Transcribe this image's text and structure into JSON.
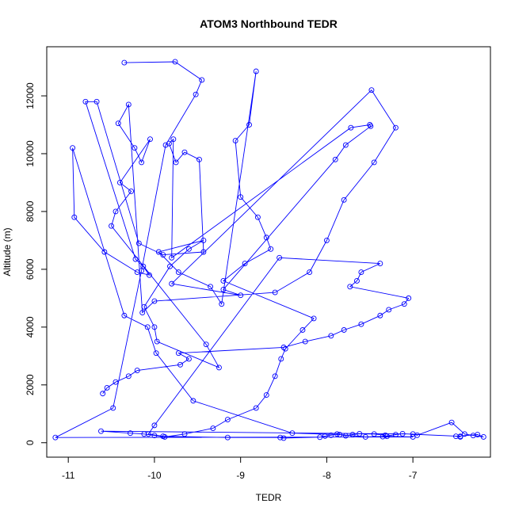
{
  "chart_data": {
    "type": "line",
    "title": "ATOM3 Northbound TEDR",
    "xlabel": "TEDR",
    "ylabel": "Altitude (m)",
    "xlim": [
      -11.25,
      -6.1
    ],
    "ylim": [
      -500,
      13700
    ],
    "xticks": [
      -11,
      -10,
      -9,
      -8,
      -7
    ],
    "yticks": [
      0,
      2000,
      4000,
      6000,
      8000,
      10000,
      12000
    ],
    "grid": false,
    "legend": "none",
    "colors": {
      "series": "#0000ff",
      "axis": "#000000"
    },
    "series": [
      {
        "marker": "open-circle",
        "x": [
          -10.35,
          -9.76,
          -9.45,
          -9.52,
          -9.87,
          -10.15,
          -10.48,
          -11.15,
          -7.0,
          -7.3,
          -7.55,
          -7.85,
          -8.4,
          -9.55,
          -9.98,
          -10.08,
          -10.35,
          -10.95,
          -10.93,
          -10.58,
          -10.2,
          -10.06,
          -10.13,
          -10.22,
          -10.8,
          -10.67,
          -10.18,
          -9.9,
          -9.43,
          -9.48,
          -9.65,
          -9.75,
          -9.83,
          -9.78,
          -9.8,
          -7.72,
          -7.5,
          -7.49,
          -7.78,
          -7.9,
          -9.2,
          -9.0,
          -9.8,
          -7.48,
          -7.2,
          -7.45,
          -7.8,
          -8.0,
          -8.2,
          -8.6,
          -10.0,
          -10.14,
          -10.3,
          -10.42,
          -10.23,
          -10.15,
          -10.05,
          -10.4,
          -10.27,
          -10.45,
          -10.5,
          -9.4,
          -9.25,
          -9.97,
          -10.0,
          -10.12,
          -9.82,
          -9.6,
          -9.43,
          -9.95,
          -9.72,
          -9.35,
          -9.22,
          -8.82,
          -8.9,
          -9.06,
          -9.0,
          -8.8,
          -8.7,
          -8.65,
          -8.95,
          -9.2,
          -8.15,
          -8.28,
          -8.48,
          -8.53,
          -8.6,
          -8.7,
          -8.82,
          -9.15,
          -9.32,
          -9.65,
          -9.88,
          -10.0,
          -10.12,
          -10.28,
          -10.62,
          -7.0,
          -6.95,
          -6.55,
          -6.4,
          -6.3,
          -6.18,
          -6.25,
          -6.5,
          -6.45,
          -6.45,
          -7.12,
          -7.2,
          -7.35,
          -7.32,
          -7.45,
          -7.62,
          -7.7,
          -7.78,
          -7.88,
          -7.95,
          -8.02,
          -8.08,
          -8.5,
          -8.54,
          -9.15,
          -9.9,
          -10.07,
          -10.0,
          -8.55,
          -7.38,
          -7.6,
          -7.65,
          -7.73,
          -7.05,
          -7.1,
          -7.28,
          -7.38,
          -7.6,
          -7.8,
          -7.95,
          -8.25,
          -8.5,
          -9.72,
          -9.6,
          -9.7,
          -10.2,
          -10.3,
          -10.45,
          -10.55,
          -10.6
        ],
        "y": [
          13150,
          13180,
          12550,
          12050,
          10300,
          5950,
          1200,
          180,
          200,
          220,
          200,
          280,
          330,
          1450,
          3100,
          4000,
          4400,
          10200,
          7800,
          6600,
          5900,
          5800,
          6100,
          6350,
          11800,
          11800,
          6900,
          6500,
          6600,
          9800,
          10050,
          9700,
          10350,
          10500,
          6400,
          10900,
          11000,
          10950,
          10300,
          9800,
          5300,
          5100,
          5500,
          12200,
          10900,
          9700,
          8400,
          7000,
          5900,
          5200,
          4900,
          4500,
          11700,
          11050,
          10200,
          9700,
          10500,
          9000,
          8700,
          8000,
          7500,
          3400,
          2600,
          3500,
          4000,
          4700,
          6100,
          6700,
          7000,
          6600,
          5900,
          5400,
          4800,
          12850,
          11000,
          10450,
          8500,
          7800,
          7100,
          6700,
          6200,
          5600,
          4300,
          3900,
          3250,
          2900,
          2300,
          1650,
          1200,
          800,
          500,
          300,
          200,
          250,
          300,
          330,
          400,
          300,
          260,
          700,
          300,
          250,
          200,
          280,
          220,
          200,
          220,
          310,
          280,
          210,
          260,
          300,
          310,
          280,
          240,
          300,
          260,
          230,
          190,
          160,
          180,
          180,
          220,
          300,
          600,
          6400,
          6200,
          5900,
          5600,
          5400,
          5000,
          4800,
          4600,
          4400,
          4100,
          3900,
          3700,
          3500,
          3300,
          3100,
          2900,
          2700,
          2500,
          2300,
          2100,
          1900,
          1700
        ]
      }
    ]
  }
}
